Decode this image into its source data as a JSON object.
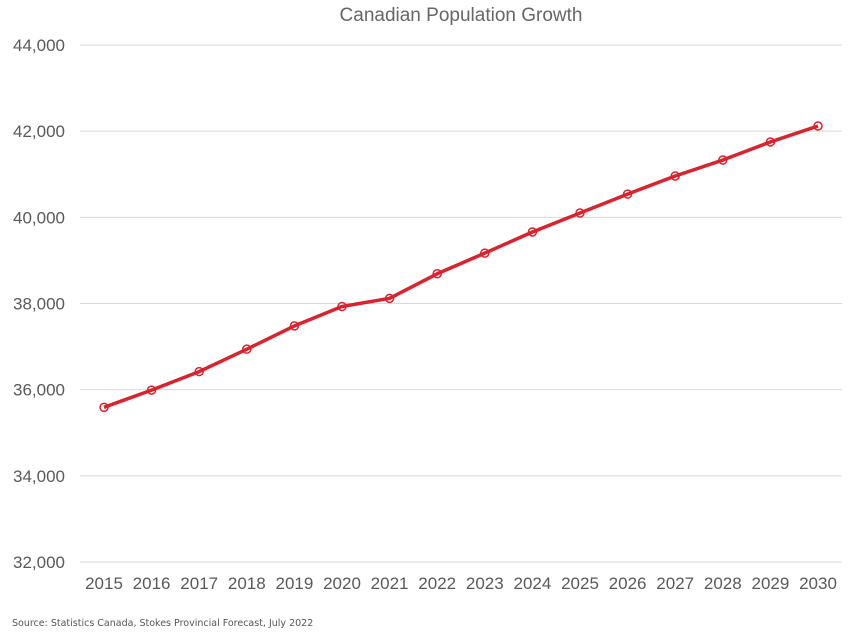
{
  "chart_data": {
    "type": "line",
    "title": "Canadian Population Growth",
    "xlabel": "",
    "ylabel": "",
    "categories": [
      "2015",
      "2016",
      "2017",
      "2018",
      "2019",
      "2020",
      "2021",
      "2022",
      "2023",
      "2024",
      "2025",
      "2026",
      "2027",
      "2028",
      "2029",
      "2030"
    ],
    "series": [
      {
        "values": [
          35590,
          35990,
          36420,
          36940,
          37480,
          37930,
          38120,
          38690,
          39170,
          39660,
          40100,
          40540,
          40960,
          41330,
          41750,
          42120
        ],
        "color": "#d9232e",
        "marker": "circle-open"
      }
    ],
    "ylim": [
      32000,
      44000
    ],
    "yticks": [
      32000,
      34000,
      36000,
      38000,
      40000,
      42000,
      44000
    ],
    "ytick_labels": [
      "32,000",
      "34,000",
      "36,000",
      "38,000",
      "40,000",
      "42,000",
      "44,000"
    ],
    "grid": "horizontal",
    "legend": "none"
  },
  "source": "Source: Statistics Canada, Stokes Provincial Forecast, July 2022"
}
